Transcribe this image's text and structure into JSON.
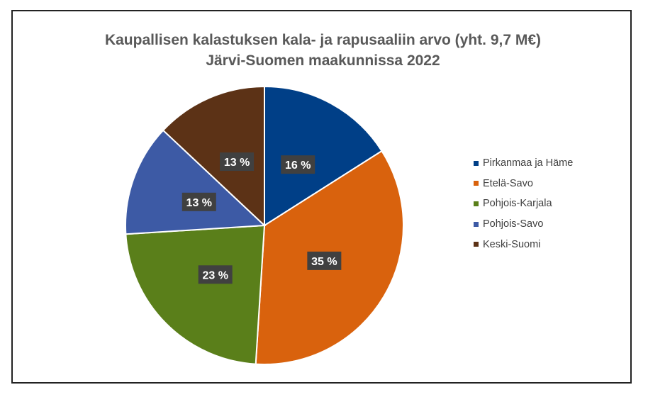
{
  "chart_data": {
    "type": "pie",
    "title": [
      "Kaupallisen kalastuksen kala- ja rapusaaliin arvo (yht. 9,7 M€)",
      "Järvi-Suomen maakunnissa 2022"
    ],
    "slices": [
      {
        "label": "Pirkanmaa ja Häme",
        "value": 16,
        "data_label": "16 %",
        "color": "#003F87"
      },
      {
        "label": "Etelä-Savo",
        "value": 35,
        "data_label": "35 %",
        "color": "#D9620D"
      },
      {
        "label": "Pohjois-Karjala",
        "value": 23,
        "data_label": "23 %",
        "color": "#5A7F1A"
      },
      {
        "label": "Pohjois-Savo",
        "value": 13,
        "data_label": "13 %",
        "color": "#3D5AA5"
      },
      {
        "label": "Keski-Suomi",
        "value": 13,
        "data_label": "13 %",
        "color": "#5C3216"
      }
    ],
    "start": "12 o'clock",
    "direction": "clockwise",
    "legend_position": "right",
    "data_label_style": "white bold text on dark gray box"
  }
}
